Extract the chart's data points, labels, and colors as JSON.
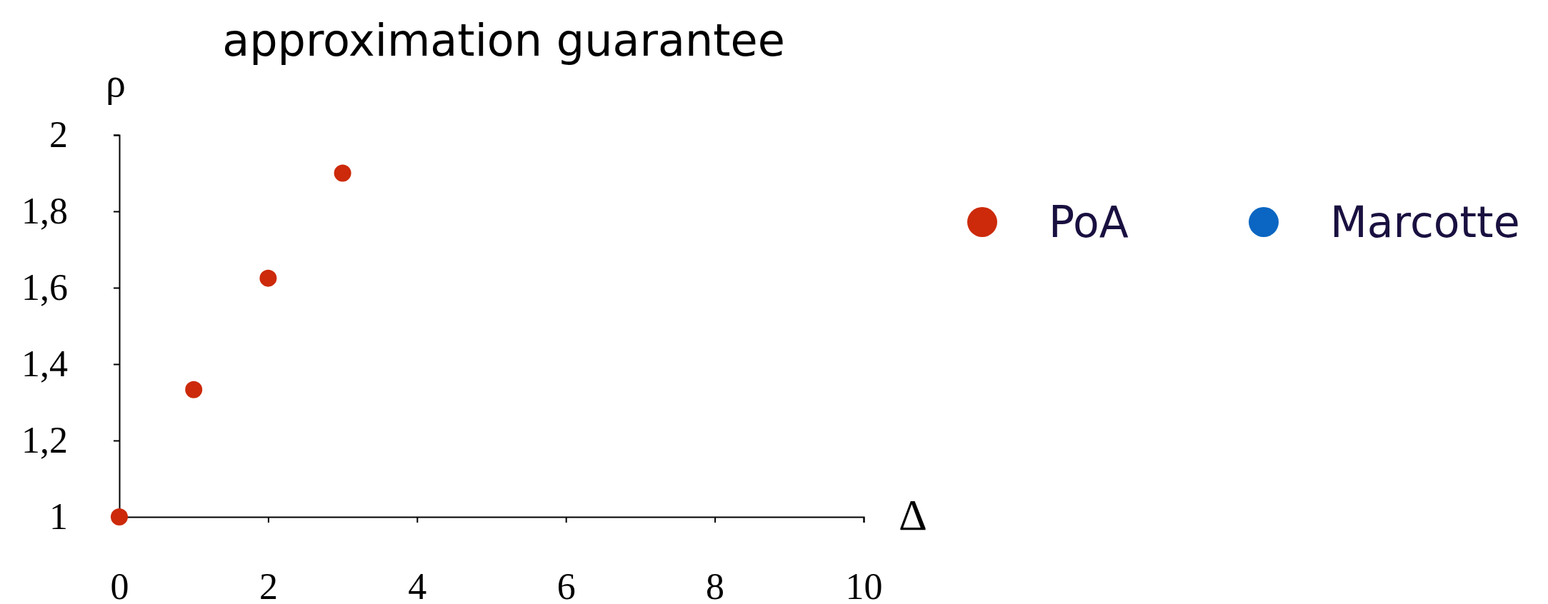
{
  "chart_data": {
    "type": "scatter",
    "title": "approximation guarantee",
    "xlabel": "Δ",
    "ylabel": "ρ",
    "x": [
      0,
      1,
      2,
      3
    ],
    "series": [
      {
        "name": "PoA",
        "color": "#cc2a0a",
        "values": [
          1,
          1.333,
          1.625,
          1.9
        ]
      },
      {
        "name": "Marcotte",
        "color": "#0a66c2",
        "values": [
          null,
          null,
          null,
          null
        ]
      }
    ],
    "xlim": [
      0,
      10
    ],
    "xticks": [
      0,
      2,
      4,
      6,
      8,
      10
    ],
    "ylim": [
      1,
      2
    ],
    "yticks": [
      1,
      {
        "value": 1.2,
        "label": "1,2"
      },
      {
        "value": 1.4,
        "label": "1,4"
      },
      {
        "value": 1.6,
        "label": "1,6"
      },
      {
        "value": 1.8,
        "label": "1,8"
      },
      2
    ],
    "grid": false,
    "legend": "right",
    "marker": "circle"
  }
}
